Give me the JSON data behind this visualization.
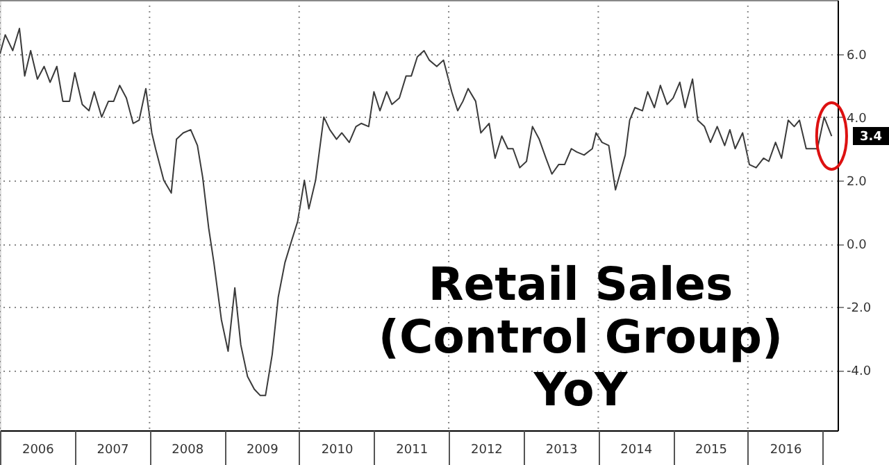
{
  "chart_data": {
    "type": "line",
    "title": "Retail Sales\n(Control Group)\nYoY",
    "color": "#3a3a3a",
    "grid": true,
    "x": [
      2006.0,
      2006.07,
      2006.17,
      2006.26,
      2006.33,
      2006.41,
      2006.5,
      2006.59,
      2006.67,
      2006.76,
      2006.84,
      2006.93,
      2007.0,
      2007.1,
      2007.19,
      2007.26,
      2007.36,
      2007.45,
      2007.52,
      2007.6,
      2007.69,
      2007.78,
      2007.86,
      2007.95,
      2008.03,
      2008.08,
      2008.19,
      2008.29,
      2008.36,
      2008.45,
      2008.55,
      2008.64,
      2008.71,
      2008.79,
      2008.86,
      2008.96,
      2009.05,
      2009.14,
      2009.22,
      2009.31,
      2009.4,
      2009.48,
      2009.55,
      2009.64,
      2009.72,
      2009.81,
      2009.9,
      2009.98,
      2010.07,
      2010.13,
      2010.22,
      2010.33,
      2010.41,
      2010.5,
      2010.57,
      2010.67,
      2010.76,
      2010.83,
      2010.93,
      2011.0,
      2011.08,
      2011.17,
      2011.24,
      2011.34,
      2011.43,
      2011.5,
      2011.58,
      2011.67,
      2011.74,
      2011.84,
      2011.93,
      2012.04,
      2012.12,
      2012.19,
      2012.26,
      2012.36,
      2012.43,
      2012.54,
      2012.62,
      2012.71,
      2012.79,
      2012.86,
      2012.95,
      2013.04,
      2013.12,
      2013.21,
      2013.3,
      2013.38,
      2013.47,
      2013.55,
      2013.64,
      2013.71,
      2013.81,
      2013.92,
      2013.97,
      2014.05,
      2014.14,
      2014.23,
      2014.36,
      2014.42,
      2014.49,
      2014.59,
      2014.66,
      2014.75,
      2014.83,
      2014.92,
      2015.0,
      2015.09,
      2015.16,
      2015.26,
      2015.33,
      2015.42,
      2015.5,
      2015.59,
      2015.69,
      2015.76,
      2015.83,
      2015.93,
      2016.02,
      2016.11,
      2016.21,
      2016.28,
      2016.37,
      2016.45,
      2016.54,
      2016.62,
      2016.69,
      2016.78,
      2016.93,
      2017.02,
      2017.12
    ],
    "values": [
      6.0,
      6.6,
      6.1,
      6.8,
      5.3,
      6.1,
      5.2,
      5.6,
      5.1,
      5.6,
      4.5,
      4.5,
      5.4,
      4.4,
      4.2,
      4.8,
      4.0,
      4.5,
      4.5,
      5.0,
      4.6,
      3.8,
      3.9,
      4.9,
      3.5,
      3.0,
      2.0,
      1.6,
      3.3,
      3.5,
      3.6,
      3.1,
      2.1,
      0.5,
      -0.6,
      -2.4,
      -3.4,
      -1.4,
      -3.2,
      -4.2,
      -4.6,
      -4.8,
      -4.8,
      -3.5,
      -1.7,
      -0.6,
      0.1,
      0.7,
      2.0,
      1.1,
      2.0,
      4.0,
      3.6,
      3.3,
      3.5,
      3.2,
      3.7,
      3.8,
      3.7,
      4.8,
      4.2,
      4.8,
      4.4,
      4.6,
      5.3,
      5.3,
      5.9,
      6.1,
      5.8,
      5.6,
      5.8,
      4.8,
      4.2,
      4.5,
      4.9,
      4.5,
      3.5,
      3.8,
      2.7,
      3.4,
      3.0,
      3.0,
      2.4,
      2.6,
      3.7,
      3.3,
      2.7,
      2.2,
      2.5,
      2.5,
      3.0,
      2.9,
      2.8,
      3.0,
      3.5,
      3.2,
      3.1,
      1.7,
      2.8,
      3.9,
      4.3,
      4.2,
      4.8,
      4.3,
      5.0,
      4.4,
      4.6,
      5.1,
      4.3,
      5.2,
      3.9,
      3.7,
      3.2,
      3.7,
      3.1,
      3.6,
      3.0,
      3.5,
      2.5,
      2.4,
      2.7,
      2.6,
      3.2,
      2.7,
      3.9,
      3.7,
      3.9,
      3.0,
      3.0,
      4.0,
      3.4
    ],
    "xlim": [
      2006,
      2017.2
    ],
    "xticks": [
      {
        "value": 2006,
        "label": null
      },
      {
        "value": 2007,
        "label": null
      },
      {
        "value": 2008,
        "label": null
      },
      {
        "value": 2009,
        "label": null
      },
      {
        "value": 2010,
        "label": null
      },
      {
        "value": 2011,
        "label": null
      },
      {
        "value": 2012,
        "label": null
      },
      {
        "value": 2013,
        "label": null
      },
      {
        "value": 2014,
        "label": null
      },
      {
        "value": 2015,
        "label": null
      },
      {
        "value": 2016,
        "label": null
      },
      {
        "value": 2017,
        "label": null
      },
      {
        "value": 2006.5,
        "label": "2006"
      },
      {
        "value": 2007.5,
        "label": "2007"
      },
      {
        "value": 2008.5,
        "label": "2008"
      },
      {
        "value": 2009.5,
        "label": "2009"
      },
      {
        "value": 2010.5,
        "label": "2010"
      },
      {
        "value": 2011.5,
        "label": "2011"
      },
      {
        "value": 2012.5,
        "label": "2012"
      },
      {
        "value": 2013.5,
        "label": "2013"
      },
      {
        "value": 2014.5,
        "label": "2014"
      },
      {
        "value": 2015.5,
        "label": "2015"
      },
      {
        "value": 2016.5,
        "label": "2016"
      }
    ],
    "ylim": [
      -5.9,
      7.7
    ],
    "yticks": [
      {
        "value": -4,
        "label": "-4.0"
      },
      {
        "value": -2,
        "label": "-2.0"
      },
      {
        "value": 0,
        "label": "0.0"
      },
      {
        "value": 2,
        "label": "2.0"
      },
      {
        "value": 4,
        "label": "4.0"
      },
      {
        "value": 6,
        "label": "6.0"
      }
    ],
    "annotations": [
      {
        "text": "3.4",
        "x": 2017.12,
        "y": 3.4
      }
    ]
  }
}
